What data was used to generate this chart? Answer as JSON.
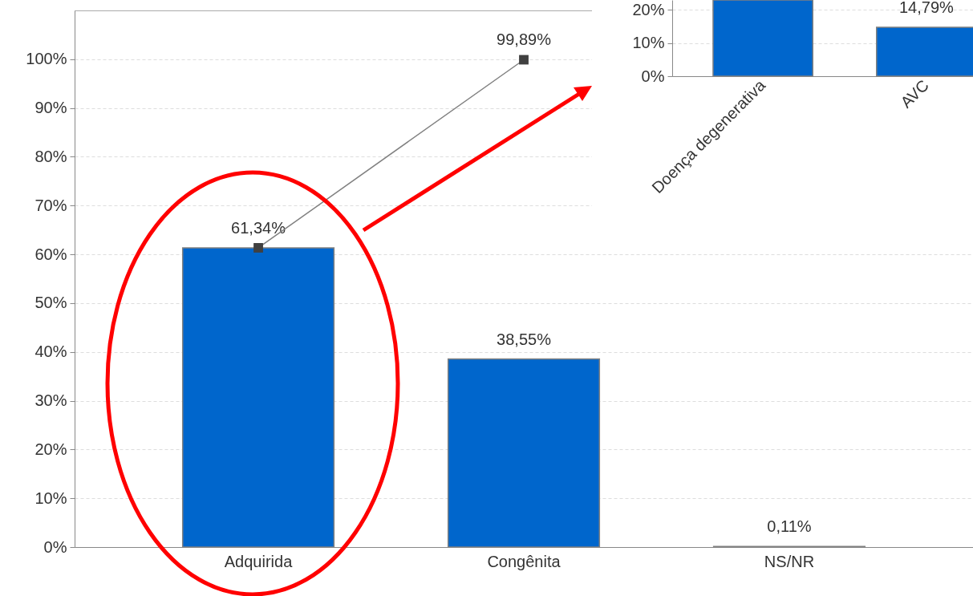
{
  "chart_data": [
    {
      "type": "bar",
      "categories": [
        "Adquirida",
        "Congênita",
        "NS/NR"
      ],
      "series": [
        {
          "color": "#0066cc",
          "values": [
            61.34,
            38.55,
            0.11
          ],
          "value_labels": [
            "61,34%",
            "38,55%",
            "0,11%"
          ]
        },
        {
          "type": "line",
          "color": "#808080",
          "values": [
            61.34,
            99.89,
            null
          ],
          "value_labels": [
            null,
            "99,89%",
            null
          ]
        }
      ],
      "marker": "square",
      "ylim": [
        0,
        110
      ],
      "yticks": [
        {
          "value": 0,
          "label": "0%"
        },
        {
          "value": 10,
          "label": "10%"
        },
        {
          "value": 20,
          "label": "20%"
        },
        {
          "value": 30,
          "label": "30%"
        },
        {
          "value": 40,
          "label": "40%"
        },
        {
          "value": 50,
          "label": "50%"
        },
        {
          "value": 60,
          "label": "60%"
        },
        {
          "value": 70,
          "label": "70%"
        },
        {
          "value": 80,
          "label": "80%"
        },
        {
          "value": 90,
          "label": "90%"
        },
        {
          "value": 100,
          "label": "100%"
        }
      ],
      "grid": "y"
    },
    {
      "type": "bar",
      "categories": [
        "Doença degenerativa",
        "AVC"
      ],
      "series": [
        {
          "color": "#0066cc",
          "values": [
            23,
            14.79
          ],
          "value_labels": [
            null,
            "14,79%"
          ]
        }
      ],
      "ylim": [
        0,
        23
      ],
      "yticks": [
        {
          "value": 0,
          "label": "0%"
        },
        {
          "value": 10,
          "label": "10%"
        },
        {
          "value": 20,
          "label": "20%"
        }
      ],
      "grid": "y"
    }
  ]
}
